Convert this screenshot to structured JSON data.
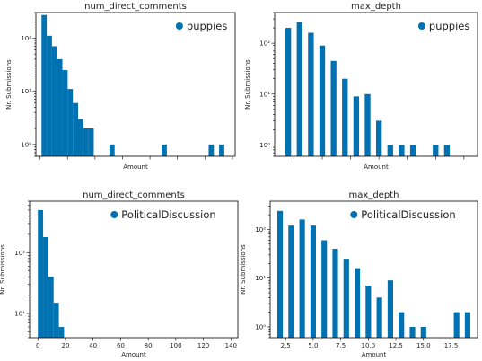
{
  "accent_color": "#0072b2",
  "chart_data": [
    {
      "type": "bar",
      "title": "num_direct_comments",
      "xlabel": "Amount",
      "ylabel": "Nr. Submissions",
      "y_scale": "log",
      "ylim": [
        0.6,
        300
      ],
      "y_ticks": [
        1,
        10,
        100
      ],
      "y_tick_labels": [
        "10⁰",
        "10¹",
        "10²"
      ],
      "xlim": [
        -3,
        142
      ],
      "x_ticks": [
        0,
        20,
        40,
        60,
        80,
        100,
        120,
        140
      ],
      "x_tick_labels": [],
      "legend": "puppies",
      "legend_position": "top-right",
      "bin_width": 3.8,
      "x": [
        3,
        6.8,
        10.6,
        14.4,
        18.2,
        22,
        25.8,
        29.6,
        33.4,
        37.2,
        52.4,
        90.4,
        124.6,
        132.2
      ],
      "values": [
        270,
        110,
        70,
        40,
        25,
        11,
        6,
        3,
        2,
        2,
        1,
        1,
        1,
        1
      ]
    },
    {
      "type": "bar",
      "title": "max_depth",
      "xlabel": "Amount",
      "ylabel": "Nr. Submissions",
      "y_scale": "log",
      "ylim": [
        0.6,
        400
      ],
      "y_ticks": [
        1,
        10,
        100
      ],
      "y_tick_labels": [
        "10⁰",
        "10¹",
        "10²"
      ],
      "xlim": [
        0.8,
        18.7
      ],
      "x_ticks": [
        2.5,
        5,
        7.5,
        10,
        12.5,
        15,
        17.5
      ],
      "x_tick_labels": [],
      "legend": "puppies",
      "legend_position": "top-right",
      "bin_width": 0.5,
      "x": [
        2,
        3,
        4,
        5,
        6,
        7,
        8,
        9,
        10,
        11,
        12,
        13,
        15,
        16
      ],
      "values": [
        200,
        260,
        160,
        90,
        45,
        20,
        9,
        10,
        3,
        1,
        1,
        1,
        1,
        1
      ]
    },
    {
      "type": "bar",
      "title": "num_direct_comments",
      "xlabel": "Amount",
      "ylabel": "Nr. Submissions",
      "y_scale": "log",
      "ylim": [
        4,
        700
      ],
      "y_ticks": [
        10,
        100
      ],
      "y_tick_labels": [
        "10¹",
        "10²"
      ],
      "xlim": [
        -6,
        145
      ],
      "x_ticks": [
        0,
        20,
        40,
        60,
        80,
        100,
        120,
        140
      ],
      "x_tick_labels": [
        "0",
        "20",
        "40",
        "60",
        "80",
        "100",
        "120",
        "140"
      ],
      "legend": "PoliticalDiscussion",
      "legend_position": "top-right",
      "bin_width": 3.8,
      "x": [
        1.9,
        5.7,
        9.5,
        13.3,
        17.1
      ],
      "values": [
        500,
        180,
        40,
        15,
        6
      ]
    },
    {
      "type": "bar",
      "title": "max_depth",
      "xlabel": "Amount",
      "ylabel": "Nr. Submissions",
      "y_scale": "log",
      "ylim": [
        0.6,
        380
      ],
      "y_ticks": [
        1,
        10,
        100
      ],
      "y_tick_labels": [
        "10⁰",
        "10¹",
        "10²"
      ],
      "xlim": [
        1.1,
        19.9
      ],
      "x_ticks": [
        2.5,
        5,
        7.5,
        10,
        12.5,
        15,
        17.5
      ],
      "x_tick_labels": [
        "2.5",
        "5.0",
        "7.5",
        "10.0",
        "12.5",
        "15.0",
        "17.5"
      ],
      "legend": "PoliticalDiscussion",
      "legend_position": "top-right",
      "bin_width": 0.5,
      "x": [
        2,
        3,
        4,
        5,
        6,
        7,
        8,
        9,
        10,
        11,
        12,
        13,
        14,
        15,
        18,
        19
      ],
      "values": [
        240,
        120,
        160,
        120,
        60,
        40,
        25,
        16,
        7,
        4,
        9,
        2,
        1,
        1,
        2,
        2
      ]
    }
  ]
}
